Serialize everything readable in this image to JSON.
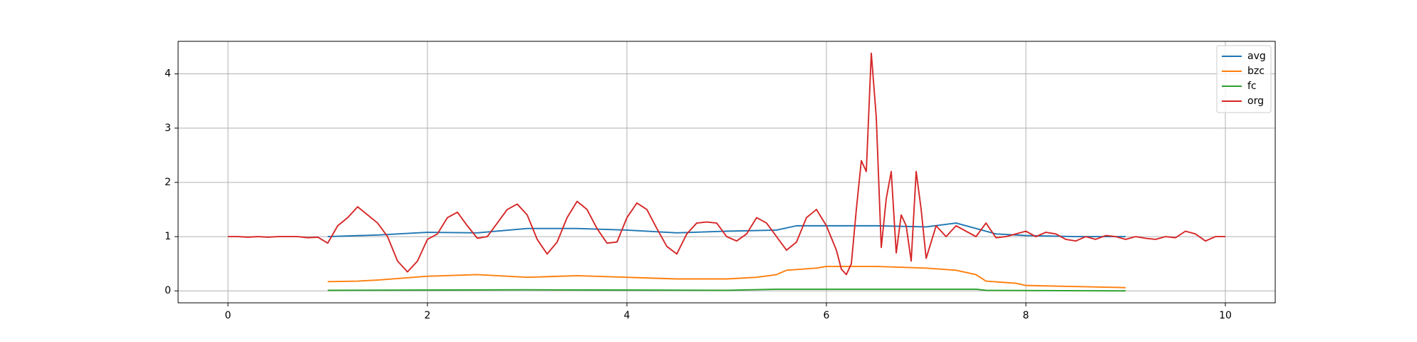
{
  "chart_data": {
    "type": "line",
    "grid": true,
    "legend": "upper right",
    "xlim": [
      -0.5,
      10.5
    ],
    "ylim": [
      -0.22,
      4.6
    ],
    "xticks": [
      0,
      2,
      4,
      6,
      8,
      10
    ],
    "yticks": [
      0,
      1,
      2,
      3,
      4
    ],
    "series": [
      {
        "name": "avg",
        "color": "#1f77b4",
        "x": [
          1,
          1.5,
          2,
          2.5,
          3,
          3.5,
          4,
          4.5,
          5,
          5.5,
          5.7,
          6,
          6.5,
          7,
          7.3,
          7.5,
          7.7,
          8,
          8.5,
          9
        ],
        "values": [
          1.0,
          1.03,
          1.08,
          1.07,
          1.15,
          1.15,
          1.12,
          1.07,
          1.1,
          1.12,
          1.2,
          1.2,
          1.2,
          1.18,
          1.25,
          1.15,
          1.05,
          1.02,
          1.0,
          1.0
        ]
      },
      {
        "name": "bzc",
        "color": "#ff7f0e",
        "x": [
          1,
          1.3,
          1.5,
          2,
          2.5,
          2.8,
          3,
          3.5,
          4,
          4.5,
          5,
          5.3,
          5.5,
          5.6,
          5.9,
          6,
          6.5,
          7,
          7.3,
          7.5,
          7.6,
          7.9,
          8,
          8.5,
          9
        ],
        "values": [
          0.17,
          0.18,
          0.2,
          0.27,
          0.3,
          0.27,
          0.25,
          0.28,
          0.25,
          0.22,
          0.22,
          0.25,
          0.3,
          0.38,
          0.42,
          0.45,
          0.45,
          0.42,
          0.38,
          0.3,
          0.18,
          0.14,
          0.1,
          0.08,
          0.06
        ]
      },
      {
        "name": "fc",
        "color": "#2ca02c",
        "x": [
          1,
          3,
          5,
          5.5,
          7.5,
          7.6,
          9
        ],
        "values": [
          0.01,
          0.02,
          0.01,
          0.03,
          0.03,
          0.01,
          0.0
        ]
      },
      {
        "name": "org",
        "color": "#d62728",
        "x": [
          0,
          0.1,
          0.2,
          0.3,
          0.4,
          0.5,
          0.6,
          0.7,
          0.8,
          0.9,
          1.0,
          1.1,
          1.2,
          1.3,
          1.4,
          1.5,
          1.6,
          1.7,
          1.8,
          1.9,
          2.0,
          2.1,
          2.2,
          2.3,
          2.4,
          2.5,
          2.6,
          2.7,
          2.8,
          2.9,
          3.0,
          3.1,
          3.2,
          3.3,
          3.4,
          3.5,
          3.6,
          3.7,
          3.8,
          3.9,
          4.0,
          4.1,
          4.2,
          4.3,
          4.4,
          4.5,
          4.6,
          4.7,
          4.8,
          4.9,
          5.0,
          5.1,
          5.2,
          5.3,
          5.4,
          5.5,
          5.6,
          5.7,
          5.8,
          5.9,
          6.0,
          6.1,
          6.15,
          6.2,
          6.25,
          6.3,
          6.35,
          6.4,
          6.45,
          6.5,
          6.55,
          6.6,
          6.65,
          6.7,
          6.75,
          6.8,
          6.85,
          6.9,
          6.95,
          7.0,
          7.1,
          7.2,
          7.3,
          7.4,
          7.5,
          7.6,
          7.7,
          7.8,
          7.9,
          8.0,
          8.1,
          8.2,
          8.3,
          8.4,
          8.5,
          8.6,
          8.7,
          8.8,
          8.9,
          9.0,
          9.1,
          9.2,
          9.3,
          9.4,
          9.5,
          9.6,
          9.7,
          9.8,
          9.9,
          10.0
        ],
        "values": [
          1.0,
          1.0,
          0.99,
          1.0,
          0.99,
          1.0,
          1.0,
          1.0,
          0.98,
          0.99,
          0.88,
          1.2,
          1.35,
          1.55,
          1.4,
          1.25,
          1.0,
          0.55,
          0.35,
          0.55,
          0.95,
          1.05,
          1.35,
          1.45,
          1.2,
          0.97,
          1.0,
          1.25,
          1.5,
          1.6,
          1.4,
          0.95,
          0.68,
          0.9,
          1.35,
          1.65,
          1.5,
          1.15,
          0.88,
          0.9,
          1.35,
          1.62,
          1.5,
          1.15,
          0.82,
          0.68,
          1.05,
          1.25,
          1.27,
          1.25,
          1.0,
          0.92,
          1.05,
          1.35,
          1.25,
          1.0,
          0.75,
          0.9,
          1.35,
          1.5,
          1.2,
          0.75,
          0.4,
          0.3,
          0.5,
          1.5,
          2.4,
          2.2,
          4.38,
          3.2,
          0.8,
          1.7,
          2.2,
          0.7,
          1.4,
          1.2,
          0.55,
          2.2,
          1.5,
          0.6,
          1.2,
          1.0,
          1.2,
          1.1,
          1.0,
          1.25,
          0.98,
          1.0,
          1.05,
          1.1,
          1.0,
          1.08,
          1.05,
          0.95,
          0.92,
          1.0,
          0.95,
          1.02,
          1.0,
          0.95,
          1.0,
          0.97,
          0.95,
          1.0,
          0.98,
          1.1,
          1.05,
          0.92,
          1.0,
          1.0
        ]
      }
    ]
  }
}
